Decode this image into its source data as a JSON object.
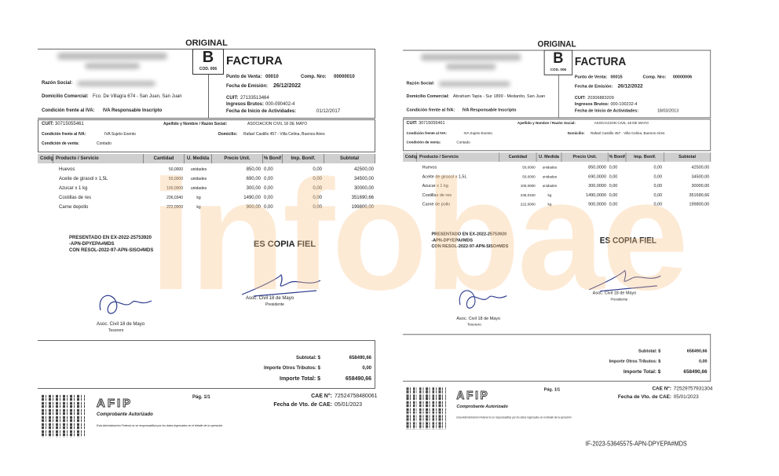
{
  "watermark": "infobae",
  "accent": "#fbc58a",
  "invoices": [
    {
      "copy": "ORIGINAL",
      "letter": "B",
      "code": "COD. 006",
      "type": "FACTURA",
      "pv_label": "Punto de Venta:",
      "pv": "00010",
      "comp_label": "Comp. Nro:",
      "comp": "00000010",
      "fecha_label": "Fecha de Emisión:",
      "fecha": "26/12/2022",
      "razon_label": "Razón Social:",
      "dom_label": "Domicilio Comercial:",
      "dom": "Fco. De Villagra 674 - San Juan, San Juan",
      "iva_label": "Condición frente al IVA:",
      "iva": "IVA Responsable Inscripto",
      "cuit_label": "CUIT:",
      "cuit": "27133513464",
      "iibb_label": "Ingresos Brutos:",
      "iibb": "000-090402-4",
      "inicio_label": "Fecha de Inicio de Actividades:",
      "inicio": "01/12/2017",
      "client": {
        "cuit_label": "CUIT:",
        "cuit": "30715055461",
        "name_label": "Apellido y Nombre / Razón Social:",
        "name": "ASOCIACION CIVIL 18 DE MAYO",
        "iva_label": "Condición frente al IVA:",
        "iva": "IVA Sujeto Exento",
        "dom_label": "Domicilio:",
        "dom": "Rafael Castillo 457 - Villa Celina, Buenos Aires",
        "venta_label": "Condición de venta:",
        "venta": "Contado"
      },
      "columns": [
        "Código",
        "Producto / Servicio",
        "Cantidad",
        "U. Medida",
        "Precio Unit.",
        "% Bonif",
        "Imp. Bonif.",
        "Subtotal"
      ],
      "rows": [
        [
          "",
          "Huevos",
          "50,0000",
          "unidades",
          "850,00",
          "0,00",
          "0,00",
          "42500,00"
        ],
        [
          "",
          "Aceite de girasol x 1,5L",
          "50,0000",
          "unidades",
          "690,00",
          "0,00",
          "0,00",
          "34500,00"
        ],
        [
          "",
          "Azucar x 1 kg",
          "100,0000",
          "unidades",
          "300,00",
          "0,00",
          "0,00",
          "30000,00"
        ],
        [
          "",
          "Costillas de res",
          "236,0340",
          "kg",
          "1490,00",
          "0,00",
          "0,00",
          "351690,66"
        ],
        [
          "",
          "Carne depollo",
          "222,0000",
          "kg",
          "900,00",
          "0,00",
          "0,00",
          "199800,00"
        ]
      ],
      "stamp": [
        "PRESENTADO EN EX-2022-25753920",
        "-APN-DPYEPA#MDS",
        "CON RESOL-2022-97-APN-SISO#MDS"
      ],
      "copia": "ES COPIA FIEL",
      "sig1": [
        "Asoc. Civil 18 de Mayo",
        "Tesorero"
      ],
      "sig2": [
        "Asoc. Civil 18 de Mayo",
        "Presidente"
      ],
      "subtotal_label": "Subtotal: $",
      "subtotal": "658490,66",
      "otros_label": "Importe Otros Tributos: $",
      "otros": "0,00",
      "total_label": "Importe Total: $",
      "total": "658490,66",
      "afip": "AFIP",
      "autorizado": "Comprobante Autorizado",
      "disclaimer": "Esta Administración Federal no se responsabiliza por los datos ingresados en el detalle de la operación",
      "page": "Pág. 1/1",
      "cae_label": "CAE N°:",
      "cae": "72524758480061",
      "vto_label": "Fecha de Vto. de CAE:",
      "vto": "05/01/2023",
      "ref": ""
    },
    {
      "copy": "ORIGINAL",
      "letter": "B",
      "code": "COD. 006",
      "type": "FACTURA",
      "pv_label": "Punto de Venta:",
      "pv": "00015",
      "comp_label": "Comp. Nro:",
      "comp": "00000006",
      "fecha_label": "Fecha de Emisión:",
      "fecha": "26/12/2022",
      "razon_label": "Razón Social:",
      "dom_label": "Domicilio Comercial:",
      "dom": "Abraham Tapia - Sur 1899 - Medanito, San Juan",
      "iva_label": "Condición frente al IVA:",
      "iva": "IVA Responsable Inscripto",
      "cuit_label": "CUIT:",
      "cuit": "20306883209",
      "iibb_label": "Ingresos Brutos:",
      "iibb": "000-100232-4",
      "inicio_label": "Fecha de Inicio de Actividades:",
      "inicio": "18/03/2013",
      "client": {
        "cuit_label": "CUIT:",
        "cuit": "30715055461",
        "name_label": "Apellido y Nombre / Razón Social:",
        "name": "ASOCIACION CIVIL 18 DE MAYO",
        "iva_label": "Condición frente al IVA:",
        "iva": "IVA Sujeto Exento",
        "dom_label": "Domicilio:",
        "dom": "Rafael Castillo 457 - Villa Celina, Buenos Aires",
        "venta_label": "Condición de venta:",
        "venta": "Contado"
      },
      "columns": [
        "Código",
        "Producto / Servicio",
        "Cantidad",
        "U. Medida",
        "Precio Unit.",
        "% Bonif",
        "Imp. Bonif.",
        "Subtotal"
      ],
      "rows": [
        [
          "",
          "Huevos",
          "50,0000",
          "unidades",
          "850,0000",
          "0,00",
          "0,00",
          "42500,00"
        ],
        [
          "",
          "Aceite de girasol x 1,5L",
          "50,0000",
          "unidades",
          "690,0000",
          "0,00",
          "0,00",
          "34500,00"
        ],
        [
          "",
          "Azucar x 1 kg",
          "100,0000",
          "unidades",
          "300,0000",
          "0,00",
          "0,00",
          "30000,00"
        ],
        [
          "",
          "Costillas de res",
          "236,0340",
          "kg",
          "1490,0000",
          "0,00",
          "0,00",
          "351690,66"
        ],
        [
          "",
          "Carne de pollo",
          "222,0000",
          "kg",
          "900,0000",
          "0,00",
          "0,00",
          "199800,00"
        ]
      ],
      "stamp": [
        "PRESENTADO EN EX-2022-25753920",
        "-APN-DPYEPA#MDS",
        "CON RESOL-2022-97-APN-SISO#MDS"
      ],
      "copia": "ES COPIA FIEL",
      "sig1": [
        "Asoc. Civil 18 de Mayo",
        "Tesorero"
      ],
      "sig2": [
        "Asoc. Civil 18 de Mayo",
        "Presidente"
      ],
      "subtotal_label": "Subtotal: $",
      "subtotal": "658490,66",
      "otros_label": "Importe Otros Tributos: $",
      "otros": "0,00",
      "total_label": "Importe Total: $",
      "total": "658490,66",
      "afip": "AFIP",
      "autorizado": "Comprobante Autorizado",
      "disclaimer": "Esta Administración Federal no se responsabiliza por los datos ingresados en el detalle de la operación",
      "page": "Pág. 1/1",
      "cae_label": "CAE N°:",
      "cae": "72529757931304",
      "vto_label": "Fecha de Vto. de CAE:",
      "vto": "05/01/2023",
      "ref": "IF-2023-53645575-APN-DPYEPA#MDS"
    }
  ]
}
